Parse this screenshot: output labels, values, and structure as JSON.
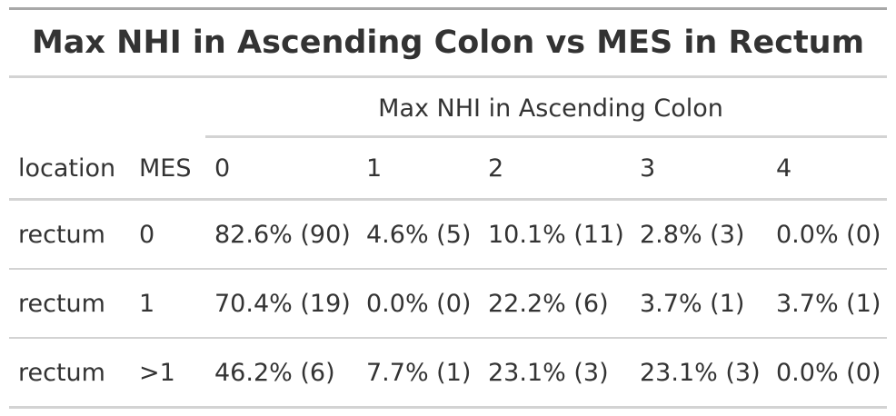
{
  "table": {
    "title": "Max NHI in Ascending Colon vs MES in Rectum",
    "spanner": "Max NHI in Ascending Colon",
    "columns": [
      "location",
      "MES",
      "0",
      "1",
      "2",
      "3",
      "4"
    ],
    "rows": [
      [
        "rectum",
        "0",
        "82.6% (90)",
        "4.6% (5)",
        "10.1% (11)",
        "2.8% (3)",
        "0.0% (0)"
      ],
      [
        "rectum",
        "1",
        "70.4% (19)",
        "0.0% (0)",
        "22.2% (6)",
        "3.7% (1)",
        "3.7% (1)"
      ],
      [
        "rectum",
        ">1",
        "46.2% (6)",
        "7.7% (1)",
        "23.1% (3)",
        "23.1% (3)",
        "0.0% (0)"
      ]
    ]
  }
}
